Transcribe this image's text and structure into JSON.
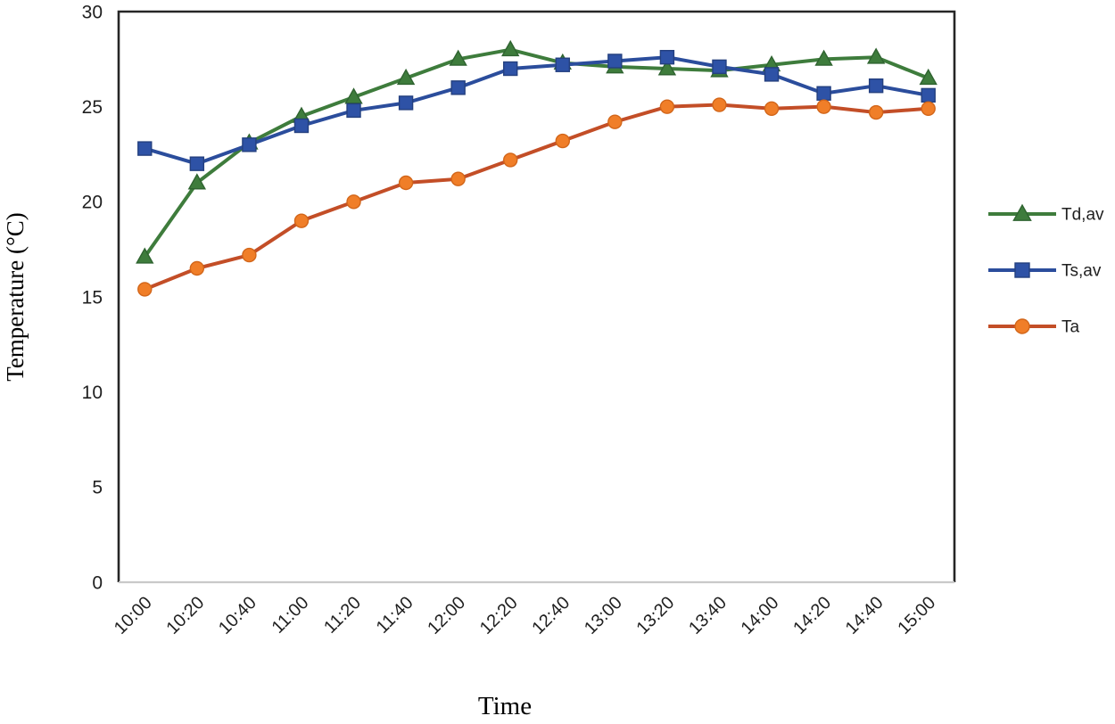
{
  "chart_data": {
    "type": "line",
    "title": "",
    "xlabel": "Time",
    "ylabel": "Temperature (°C)",
    "ylim": [
      0,
      30
    ],
    "yticks": [
      0,
      5,
      10,
      15,
      20,
      25,
      30
    ],
    "x_tick_rotation": -45,
    "grid": false,
    "legend_position": "right",
    "categories": [
      "10:00",
      "10:20",
      "10:40",
      "11:00",
      "11:20",
      "11:40",
      "12:00",
      "12:20",
      "12:40",
      "13:00",
      "13:20",
      "13:40",
      "14:00",
      "14:20",
      "14:40",
      "15:00"
    ],
    "series": [
      {
        "name": "Td,av",
        "marker": "triangle",
        "line_color": "#3E7C3C",
        "marker_color": "#3E7C3C",
        "marker_edge_color": "#2F6330",
        "values": [
          17.1,
          21.0,
          23.1,
          24.5,
          25.5,
          26.5,
          27.5,
          28.0,
          27.3,
          27.1,
          27.0,
          26.9,
          27.2,
          27.5,
          27.6,
          26.5
        ]
      },
      {
        "name": "Ts,av",
        "marker": "square",
        "line_color": "#2B4D9C",
        "marker_color": "#2E52A6",
        "marker_edge_color": "#24407F",
        "values": [
          22.8,
          22.0,
          23.0,
          24.0,
          24.8,
          25.2,
          26.0,
          27.0,
          27.2,
          27.4,
          27.6,
          27.1,
          26.7,
          25.7,
          26.1,
          25.6
        ]
      },
      {
        "name": "Ta",
        "marker": "circle",
        "line_color": "#C34E27",
        "marker_color": "#F07E28",
        "marker_edge_color": "#D2661A",
        "values": [
          15.4,
          16.5,
          17.2,
          19.0,
          20.0,
          21.0,
          21.2,
          22.2,
          23.2,
          24.2,
          25.0,
          25.1,
          24.9,
          25.0,
          24.7,
          24.9
        ]
      }
    ],
    "axis_color": "#262626",
    "bottom_axis_color": "#C9C9C9",
    "text_color": "#1F1F1F"
  }
}
